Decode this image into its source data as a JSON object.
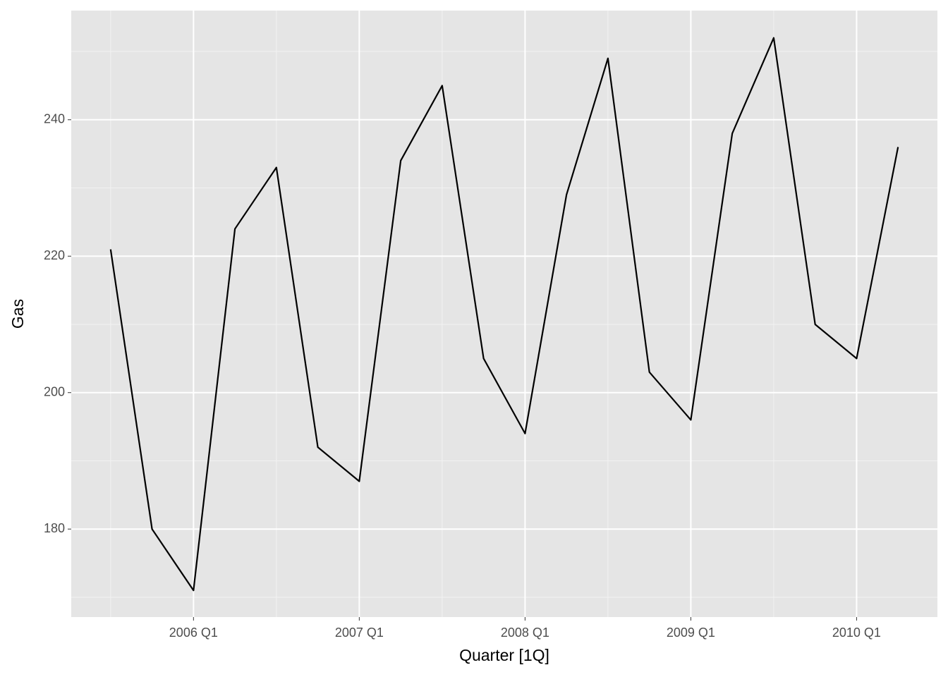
{
  "chart_data": {
    "type": "line",
    "x_label": "Quarter [1Q]",
    "y_label": "Gas",
    "categories": [
      null,
      null,
      "2006 Q1",
      null,
      null,
      null,
      "2007 Q1",
      null,
      null,
      null,
      "2008 Q1",
      null,
      null,
      null,
      "2009 Q1",
      null,
      null,
      null,
      "2010 Q1",
      null
    ],
    "values": [
      221,
      180,
      171,
      224,
      233,
      192,
      187,
      234,
      245,
      205,
      194,
      229,
      249,
      203,
      196,
      238,
      252,
      210,
      205,
      236
    ],
    "color": "#000000",
    "ylim": [
      167.1,
      256.0
    ],
    "yticks": [
      180,
      200,
      220,
      240
    ],
    "grid": true
  }
}
